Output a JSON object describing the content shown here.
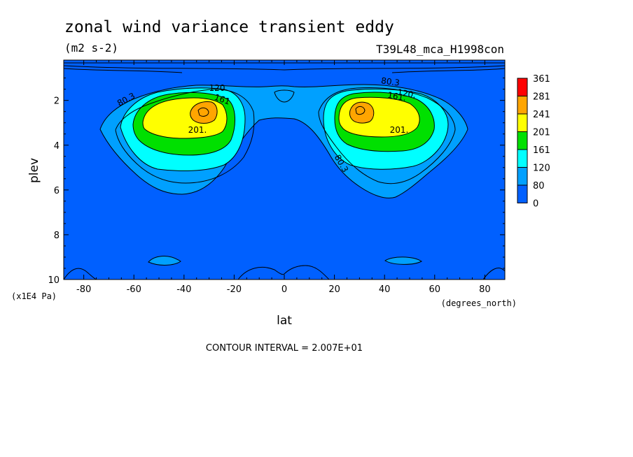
{
  "chart_data": {
    "type": "contour",
    "title": "zonal wind variance transient eddy",
    "units": "(m2 s-2)",
    "dataset": "T39L48_mca_H1998con",
    "xlabel": "lat",
    "x_units": "(degrees_north)",
    "ylabel": "plev",
    "y_units": "(x1E4 Pa)",
    "xlim": [
      -88,
      88
    ],
    "ylim": [
      10,
      0.2
    ],
    "x_ticks": [
      -80,
      -60,
      -40,
      -20,
      0,
      20,
      40,
      60,
      80
    ],
    "x_tick_labels": [
      "-80",
      "-60",
      "-40",
      "-20",
      "0",
      "20",
      "40",
      "60",
      "80"
    ],
    "y_ticks": [
      2,
      4,
      6,
      8,
      10
    ],
    "y_tick_labels": [
      "2",
      "4",
      "6",
      "8",
      "10"
    ],
    "colorbar": {
      "levels": [
        "361",
        "281",
        "241",
        "201",
        "161",
        "120",
        "80",
        "0"
      ],
      "colors": [
        "#ff0000",
        "#ffa500",
        "#ffff00",
        "#00e000",
        "#00ffff",
        "#00a0ff",
        "#0060ff",
        "#0060ff"
      ]
    },
    "contour_labels": [
      "80.3",
      "120",
      "161",
      "201.",
      "80.3",
      "120.",
      "161.",
      "201.",
      "80.3"
    ],
    "contour_interval": "CONTOUR INTERVAL = 2.007E+01",
    "maxima": [
      {
        "lat": -32,
        "plev": 2.4,
        "value": 281
      },
      {
        "lat": 30,
        "plev": 2.4,
        "value": 281
      }
    ]
  }
}
